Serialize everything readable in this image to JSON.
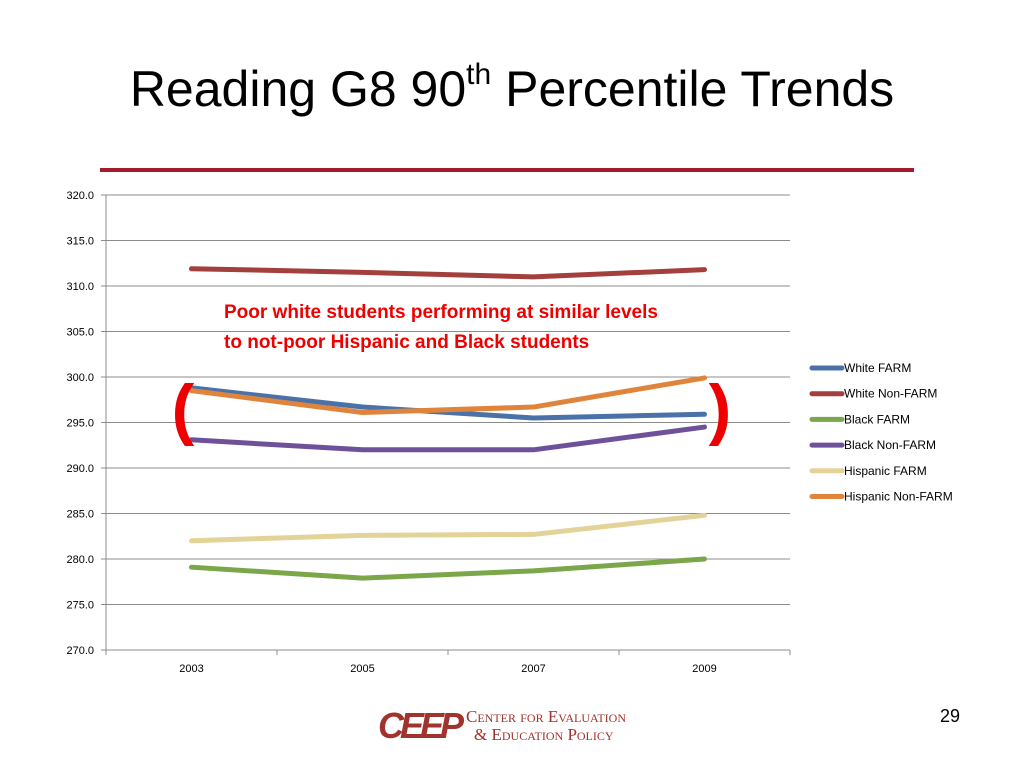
{
  "slide": {
    "title_main": "Reading G8 90",
    "title_sup": "th",
    "title_rest": " Percentile Trends",
    "page_number": "29",
    "accent_color": "#a31b2a"
  },
  "logo": {
    "mark": "CEEP",
    "line1": "Center for Evaluation",
    "line2": "& Education Policy",
    "color": "#a0332d"
  },
  "chart_data": {
    "type": "line",
    "title": "",
    "xlabel": "",
    "ylabel": "",
    "categories": [
      "2003",
      "2005",
      "2007",
      "2009"
    ],
    "ylim": [
      270,
      320
    ],
    "ytick_step": 5,
    "ytick_labels": [
      "270.0",
      "275.0",
      "280.0",
      "285.0",
      "290.0",
      "295.0",
      "300.0",
      "305.0",
      "310.0",
      "315.0",
      "320.0"
    ],
    "grid": true,
    "legend_position": "right",
    "series": [
      {
        "name": "White FARM",
        "color": "#4a72a8",
        "values": [
          298.8,
          296.7,
          295.5,
          295.9
        ]
      },
      {
        "name": "White Non-FARM",
        "color": "#a33f3c",
        "values": [
          311.9,
          311.5,
          311.0,
          311.8
        ]
      },
      {
        "name": "Black FARM",
        "color": "#7ba64a",
        "values": [
          279.1,
          277.9,
          278.7,
          280.0
        ]
      },
      {
        "name": "Black Non-FARM",
        "color": "#6e519a",
        "values": [
          293.1,
          292.0,
          292.0,
          294.5
        ]
      },
      {
        "name": "Hispanic FARM",
        "color": "#e3d398",
        "values": [
          282.0,
          282.6,
          282.7,
          284.8
        ]
      },
      {
        "name": "Hispanic Non-FARM",
        "color": "#e0843c",
        "values": [
          298.5,
          296.1,
          296.7,
          299.9
        ]
      }
    ],
    "annotation": {
      "line1": "Poor white students performing at similar levels",
      "line2": "to not-poor Hispanic and Black students",
      "color": "#ee0000",
      "open_bracket": "(",
      "close_bracket": ")"
    }
  }
}
